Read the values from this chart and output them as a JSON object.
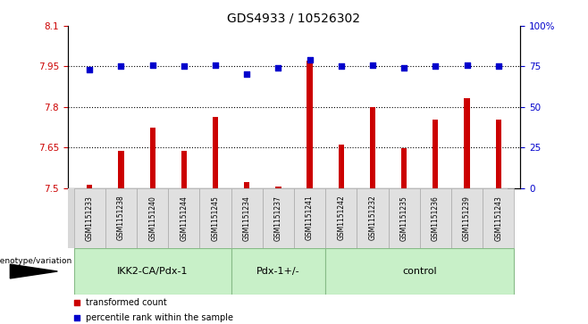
{
  "title": "GDS4933 / 10526302",
  "samples": [
    "GSM1151233",
    "GSM1151238",
    "GSM1151240",
    "GSM1151244",
    "GSM1151245",
    "GSM1151234",
    "GSM1151237",
    "GSM1151241",
    "GSM1151242",
    "GSM1151232",
    "GSM1151235",
    "GSM1151236",
    "GSM1151239",
    "GSM1151243"
  ],
  "red_values": [
    7.512,
    7.638,
    7.724,
    7.638,
    7.762,
    7.522,
    7.506,
    7.97,
    7.662,
    7.8,
    7.648,
    7.752,
    7.832,
    7.752
  ],
  "blue_values": [
    73,
    75,
    76,
    75,
    76,
    70,
    74,
    79,
    75,
    76,
    74,
    75,
    76,
    75
  ],
  "groups": [
    {
      "label": "IKK2-CA/Pdx-1",
      "start": 0,
      "end": 5
    },
    {
      "label": "Pdx-1+/-",
      "start": 5,
      "end": 8
    },
    {
      "label": "control",
      "start": 8,
      "end": 14
    }
  ],
  "ylim_left": [
    7.5,
    8.1
  ],
  "ylim_right": [
    0,
    100
  ],
  "yticks_left": [
    7.5,
    7.65,
    7.8,
    7.95,
    8.1
  ],
  "yticks_left_labels": [
    "7.5",
    "7.65",
    "7.8",
    "7.95",
    "8.1"
  ],
  "yticks_right": [
    0,
    25,
    50,
    75,
    100
  ],
  "yticks_right_labels": [
    "0",
    "25",
    "50",
    "75",
    "100%"
  ],
  "hlines": [
    7.65,
    7.8,
    7.95
  ],
  "bar_color": "#cc0000",
  "dot_color": "#0000cc",
  "group_bg": "#c8f0c8",
  "group_border": "#88bb88",
  "sample_box_bg": "#d8d8d8",
  "xlabel_label": "genotype/variation",
  "legend_red": "transformed count",
  "legend_blue": "percentile rank within the sample",
  "bar_width": 0.18,
  "ybase": 7.5,
  "dot_size": 15
}
